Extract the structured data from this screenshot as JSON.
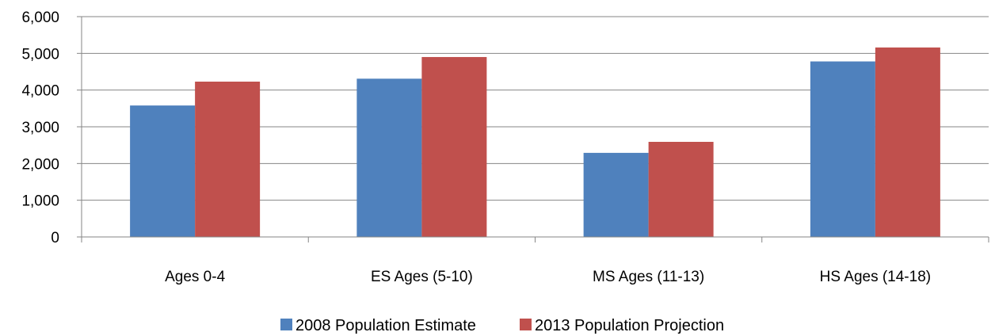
{
  "chart_data": {
    "type": "bar",
    "title": "",
    "xlabel": "",
    "ylabel": "",
    "categories": [
      "Ages 0-4",
      "ES Ages (5-10)",
      "MS Ages (11-13)",
      "HS Ages (14-18)"
    ],
    "series": [
      {
        "name": "2008 Population Estimate",
        "color": "#4F81BD",
        "values": [
          3580,
          4310,
          2290,
          4780
        ]
      },
      {
        "name": "2013 Population Projection",
        "color": "#C0504D",
        "values": [
          4230,
          4900,
          2590,
          5160
        ]
      }
    ],
    "ylim": [
      0,
      6000
    ],
    "yticks": [
      0,
      1000,
      2000,
      3000,
      4000,
      5000,
      6000
    ],
    "ytick_labels": [
      "0",
      "1,000",
      "2,000",
      "3,000",
      "4,000",
      "5,000",
      "6,000"
    ],
    "grid": true,
    "legend_position": "bottom"
  }
}
